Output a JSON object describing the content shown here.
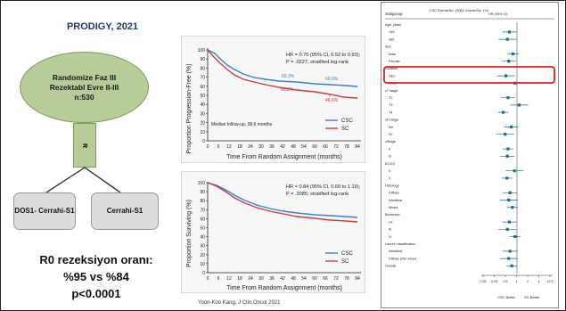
{
  "title": "PRODIGY, 2021",
  "oval": {
    "line1": "Randomize Faz III",
    "line2": "Rezektabl Evre II-III",
    "line3": "n:530"
  },
  "r_box": "R",
  "arms": {
    "left": "DOS1- Cerrahi-S1",
    "right": "Cerrahi-S1"
  },
  "result": {
    "line1": "R0 rezeksiyon oranı:",
    "line2": "%95 vs %84",
    "line3": "p<0.0001"
  },
  "citation": "Yoon-Koo Kang, J Clin Oncol 2021",
  "colors": {
    "csc": "#3a7fd5",
    "sc": "#d23a3a",
    "green_fill": "#b7cc99",
    "highlight": "#e02020",
    "forest_marker": "#1a6f86"
  },
  "pfs_plot": {
    "ylabel": "Proportion Progression-Free (%)",
    "xlabel": "Time From Random Assignment (months)",
    "hr_text": "HR = 0.70 (95% CI, 0.52 to 0.93);",
    "p_text": "P = .0227; stratified log-rank",
    "median_note": "Median follow-up, 38.6 months",
    "labels": {
      "csc": "66.3%",
      "sc": "60.2%",
      "csc2": "60.9%",
      "sc2": "46.6%"
    },
    "legend": [
      "CSC",
      "SC"
    ],
    "yticks": [
      "0",
      "10",
      "20",
      "30",
      "40",
      "50",
      "60",
      "70",
      "80",
      "90",
      "100"
    ],
    "xticks": [
      "0",
      "6",
      "12",
      "18",
      "24",
      "30",
      "36",
      "42",
      "48",
      "54",
      "60",
      "66",
      "72",
      "78",
      "84"
    ]
  },
  "os_plot": {
    "ylabel": "Proportion Surviving (%)",
    "xlabel": "Time From Random Assignment (months)",
    "hr_text": "HR = 0.84 (95% CI, 0.60 to 1.19);",
    "p_text": "P = .3085; stratified log-rank",
    "legend": [
      "CSC",
      "SC"
    ],
    "yticks": [
      "0",
      "10",
      "20",
      "30",
      "40",
      "50",
      "60",
      "70",
      "80",
      "90",
      "100"
    ],
    "xticks": [
      "0",
      "6",
      "12",
      "18",
      "24",
      "30",
      "36",
      "42",
      "48",
      "54",
      "60",
      "66",
      "72",
      "78",
      "84"
    ]
  },
  "forest": {
    "headers": [
      "Subgroup",
      "CSC Events/No. (%)",
      "SC Events/No. (%)",
      "HR (95% CI)"
    ],
    "rows": [
      "Age, years",
      "<65",
      "≥65",
      "Sex",
      "Male",
      "Female",
      "Location",
      "GEJ",
      "Other",
      "cT stage",
      "T2",
      "T3",
      "T4",
      "cN stage",
      "N0",
      "N+",
      "cStage",
      "II",
      "III",
      "ECOG",
      "0",
      "1",
      "Histology",
      "Diffuse",
      "Intestinal",
      "Mixed",
      "Borrmann",
      "I-II",
      "III",
      "IV",
      "Laurén classification",
      "Intestinal",
      "Diffuse plus mixed",
      "Overall"
    ],
    "axis": [
      "0.05",
      "0.25",
      "0.5",
      "1",
      "2",
      "4",
      "12.5"
    ],
    "footer_left": "CSC Better",
    "footer_right": "SC Better"
  }
}
